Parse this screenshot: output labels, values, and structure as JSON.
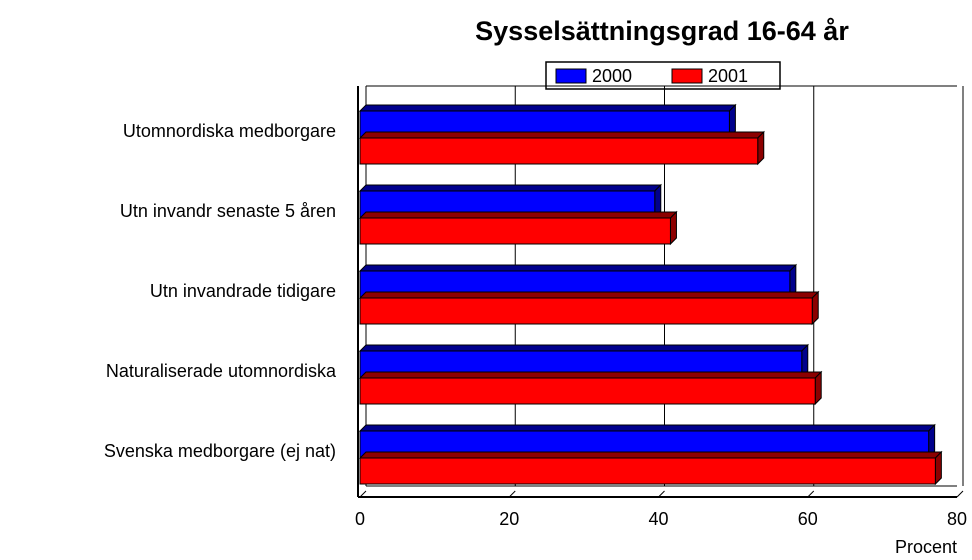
{
  "chart_data": {
    "type": "bar",
    "orientation": "horizontal",
    "title": "Sysselsättningsgrad 16-64 år",
    "x_label": "Procent",
    "categories": [
      "Utomnordiska medborgare",
      "Utn invandr senaste 5 åren",
      "Utn invandrade tidigare",
      "Naturaliserade utomnordiska",
      "Svenska medborgare (ej nat)"
    ],
    "series": [
      {
        "name": "2000",
        "color": "#0000ff",
        "values": [
          49.5,
          39.5,
          57.6,
          59.2,
          76.2
        ]
      },
      {
        "name": "2001",
        "color": "#ff0000",
        "values": [
          53.3,
          41.6,
          60.6,
          61,
          77.1
        ]
      }
    ],
    "xlim": [
      0,
      80
    ],
    "xticks": [
      0,
      20,
      40,
      60,
      80
    ],
    "grid": true,
    "legend": "top"
  }
}
